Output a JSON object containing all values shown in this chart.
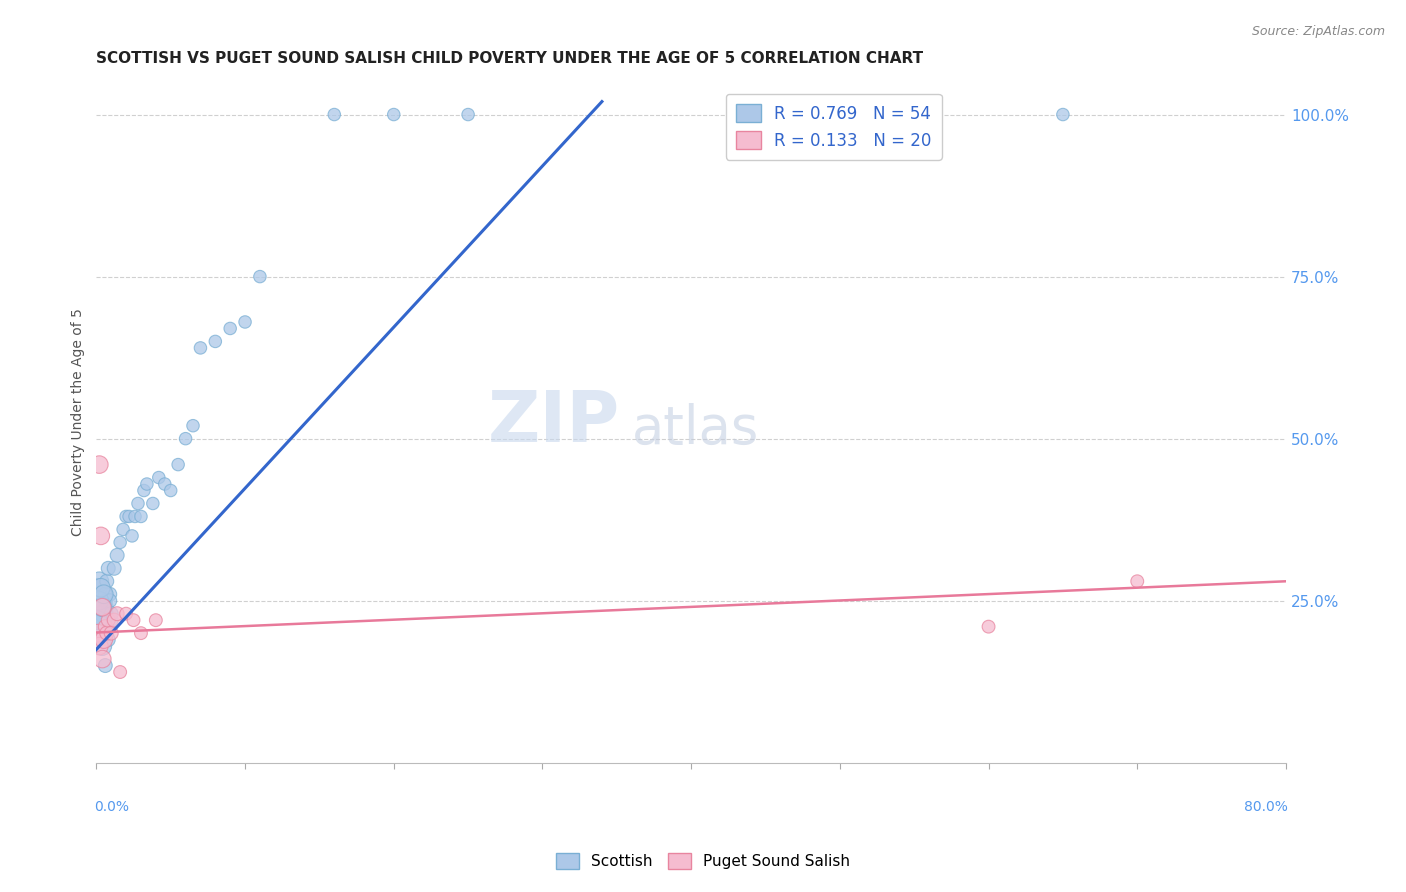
{
  "title": "SCOTTISH VS PUGET SOUND SALISH CHILD POVERTY UNDER THE AGE OF 5 CORRELATION CHART",
  "source": "Source: ZipAtlas.com",
  "ylabel": "Child Poverty Under the Age of 5",
  "watermark_zip": "ZIP",
  "watermark_atlas": "atlas",
  "legend_r1": "R = 0.769",
  "legend_n1": "N = 54",
  "legend_r2": "R = 0.133",
  "legend_n2": "N = 20",
  "scottish_color": "#adc8e8",
  "scottish_edge_color": "#7aafd4",
  "puget_color": "#f5bcd0",
  "puget_edge_color": "#e8859f",
  "blue_line_color": "#3366cc",
  "pink_line_color": "#e8799a",
  "grid_color": "#d0d0d0",
  "title_color": "#222222",
  "right_label_color": "#5599ee",
  "xmin": 0.0,
  "xmax": 0.8,
  "ymin": 0.0,
  "ymax": 1.05,
  "scottish_x": [
    0.001,
    0.002,
    0.003,
    0.004,
    0.005,
    0.006,
    0.007,
    0.008,
    0.009,
    0.01,
    0.001,
    0.002,
    0.003,
    0.004,
    0.005,
    0.006,
    0.007,
    0.008,
    0.009,
    0.01,
    0.001,
    0.002,
    0.003,
    0.004,
    0.005,
    0.006,
    0.012,
    0.014,
    0.016,
    0.018,
    0.02,
    0.022,
    0.024,
    0.026,
    0.028,
    0.03,
    0.032,
    0.034,
    0.038,
    0.042,
    0.046,
    0.05,
    0.055,
    0.06,
    0.065,
    0.07,
    0.08,
    0.09,
    0.1,
    0.11,
    0.16,
    0.2,
    0.25,
    0.65
  ],
  "scottish_y": [
    0.22,
    0.24,
    0.2,
    0.18,
    0.23,
    0.25,
    0.21,
    0.19,
    0.26,
    0.22,
    0.27,
    0.28,
    0.2,
    0.22,
    0.24,
    0.26,
    0.28,
    0.3,
    0.25,
    0.23,
    0.22,
    0.25,
    0.27,
    0.24,
    0.26,
    0.15,
    0.3,
    0.32,
    0.34,
    0.36,
    0.38,
    0.38,
    0.35,
    0.38,
    0.4,
    0.38,
    0.42,
    0.43,
    0.4,
    0.44,
    0.43,
    0.42,
    0.46,
    0.5,
    0.52,
    0.64,
    0.65,
    0.67,
    0.68,
    0.75,
    1.0,
    1.0,
    1.0,
    1.0
  ],
  "puget_x": [
    0.001,
    0.002,
    0.003,
    0.004,
    0.005,
    0.006,
    0.007,
    0.008,
    0.01,
    0.012,
    0.014,
    0.016,
    0.02,
    0.025,
    0.03,
    0.04,
    0.002,
    0.004,
    0.6,
    0.7
  ],
  "puget_y": [
    0.2,
    0.18,
    0.35,
    0.16,
    0.19,
    0.21,
    0.2,
    0.22,
    0.2,
    0.22,
    0.23,
    0.14,
    0.23,
    0.22,
    0.2,
    0.22,
    0.46,
    0.24,
    0.21,
    0.28
  ],
  "blue_line_x": [
    -0.01,
    0.34
  ],
  "blue_line_y": [
    0.15,
    1.02
  ],
  "pink_line_x": [
    -0.01,
    0.8
  ],
  "pink_line_y": [
    0.2,
    0.28
  ]
}
